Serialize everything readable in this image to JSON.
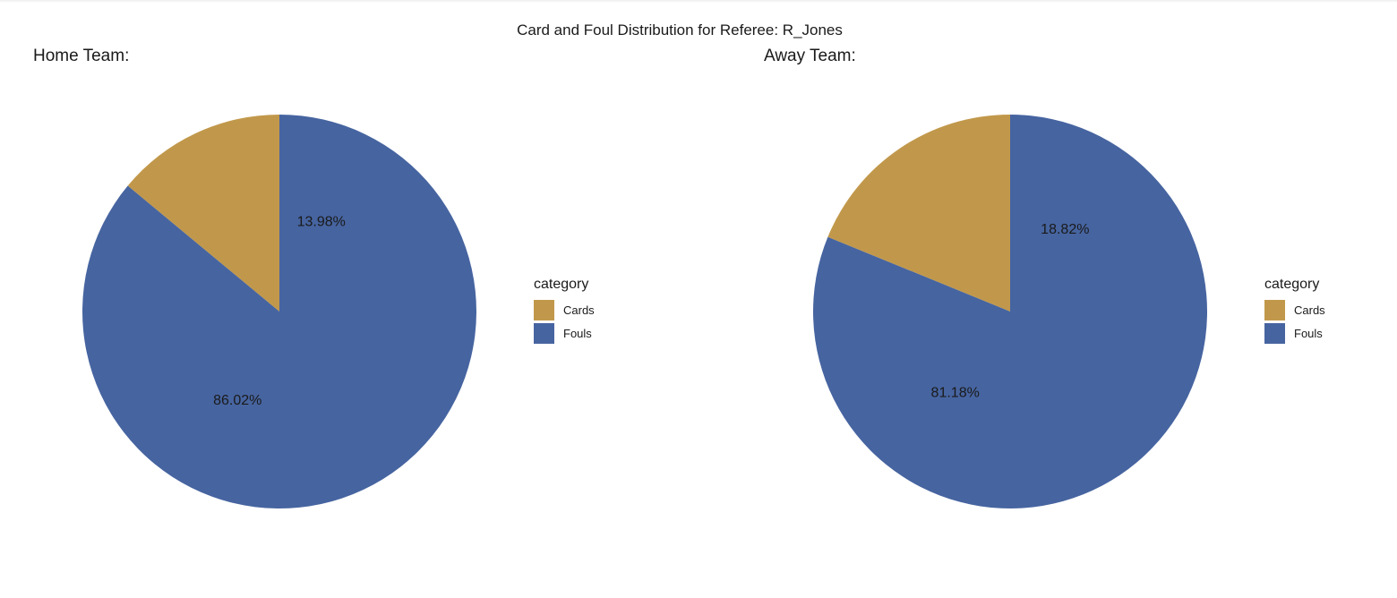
{
  "title": "Card and Foul Distribution for Referee: R_Jones",
  "colors": {
    "Cards": "#C1984B",
    "Fouls": "#4664A0"
  },
  "chart_data": [
    {
      "type": "pie",
      "subtitle": "Home Team:",
      "categories": [
        "Cards",
        "Fouls"
      ],
      "values": [
        13.98,
        86.02
      ],
      "data_labels": [
        "13.98%",
        "86.02%"
      ],
      "legend": {
        "title": "category",
        "items": [
          "Cards",
          "Fouls"
        ],
        "placement": "right"
      }
    },
    {
      "type": "pie",
      "subtitle": "Away Team:",
      "categories": [
        "Cards",
        "Fouls"
      ],
      "values": [
        18.82,
        81.18
      ],
      "data_labels": [
        "18.82%",
        "81.18%"
      ],
      "legend": {
        "title": "category",
        "items": [
          "Cards",
          "Fouls"
        ],
        "placement": "right"
      }
    }
  ]
}
